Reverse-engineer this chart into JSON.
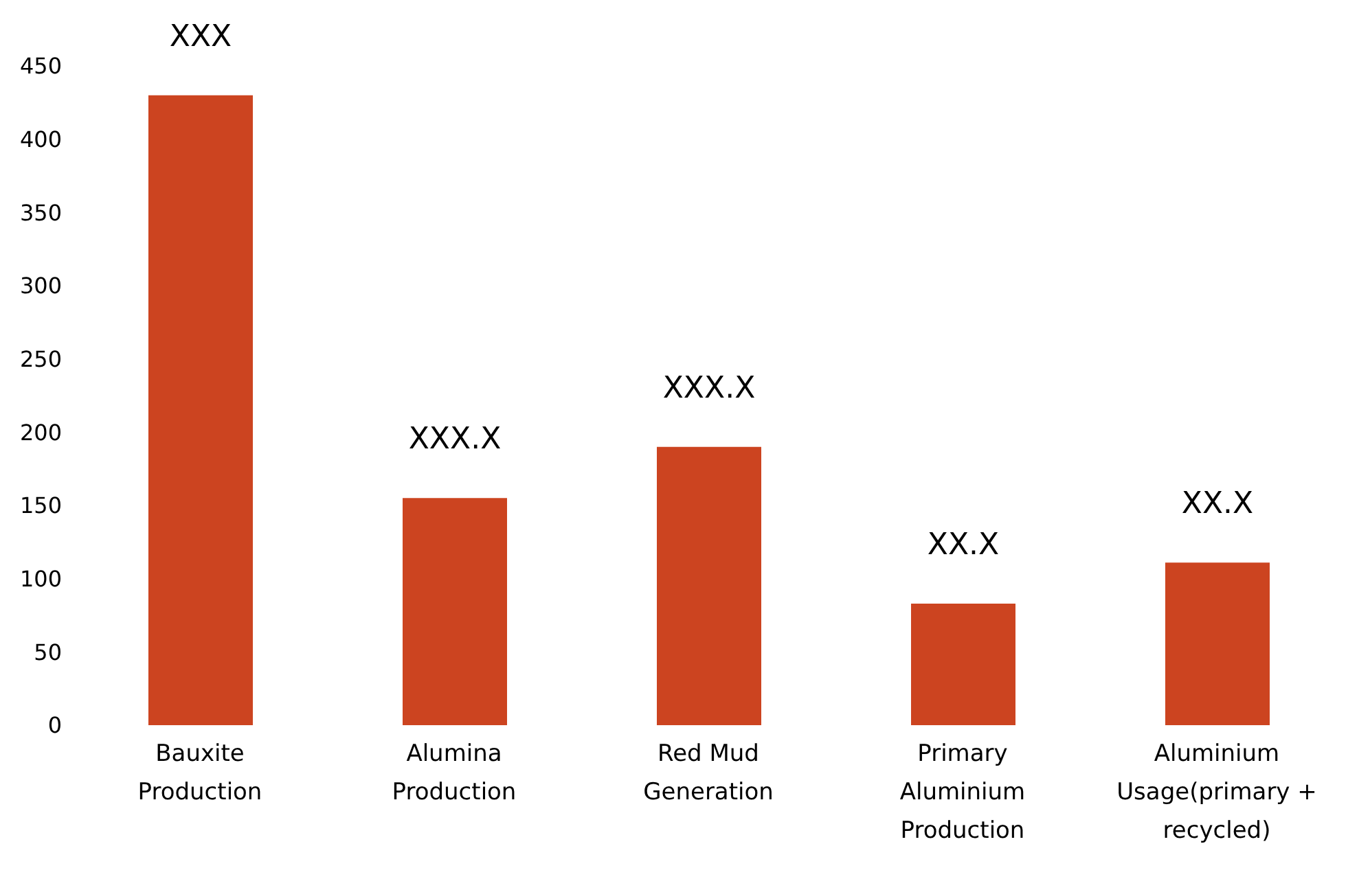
{
  "chart_data": {
    "type": "bar",
    "categories": [
      "Bauxite Production",
      "Alumina Production",
      "Red Mud Generation",
      "Primary Aluminium Production",
      "Aluminium Usage(primary + recycled)"
    ],
    "values": [
      430,
      155,
      190,
      83,
      111
    ],
    "value_labels": [
      "XXX",
      "XXX.X",
      "XXX.X",
      "XX.X",
      "XX.X"
    ],
    "color": "#cc4420",
    "ylim": [
      0,
      450
    ],
    "yticks": [
      0,
      50,
      100,
      150,
      200,
      250,
      300,
      350,
      400,
      450
    ],
    "grid": false,
    "legend": false
  }
}
